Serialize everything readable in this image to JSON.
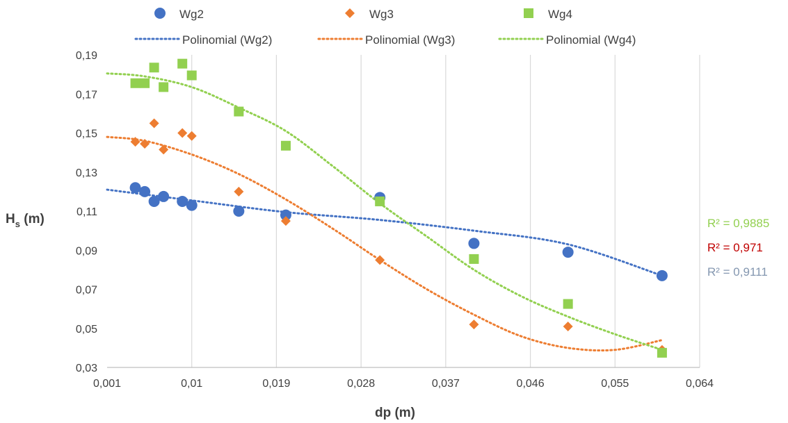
{
  "chart_data": {
    "type": "scatter",
    "title": "",
    "xlabel": "dp (m)",
    "ylabel": {
      "main": "H",
      "sub": "s",
      "unit": " (m)"
    },
    "xlim": [
      0.001,
      0.064
    ],
    "ylim": [
      0.03,
      0.19
    ],
    "xticks": [
      "0,001",
      "0,01",
      "0,019",
      "0,028",
      "0,037",
      "0,046",
      "0,055",
      "0,064"
    ],
    "xtick_values": [
      0.001,
      0.01,
      0.019,
      0.028,
      0.037,
      0.046,
      0.055,
      0.064
    ],
    "yticks": [
      "0,03",
      "0,05",
      "0,07",
      "0,09",
      "0,11",
      "0,13",
      "0,15",
      "0,17",
      "0,19"
    ],
    "ytick_values": [
      0.03,
      0.05,
      0.07,
      0.09,
      0.11,
      0.13,
      0.15,
      0.17,
      0.19
    ],
    "grid": "vertical",
    "legend_position": "top",
    "series": [
      {
        "name": "Wg2",
        "marker": "circle",
        "color": "#4472C4",
        "x": [
          0.004,
          0.005,
          0.006,
          0.007,
          0.009,
          0.01,
          0.015,
          0.02,
          0.03,
          0.04,
          0.05,
          0.06
        ],
        "y": [
          0.122,
          0.12,
          0.115,
          0.1175,
          0.115,
          0.113,
          0.11,
          0.108,
          0.117,
          0.0935,
          0.089,
          0.077
        ]
      },
      {
        "name": "Wg3",
        "marker": "diamond",
        "color": "#ED7D31",
        "x": [
          0.004,
          0.005,
          0.006,
          0.007,
          0.009,
          0.01,
          0.015,
          0.02,
          0.03,
          0.04,
          0.05,
          0.06
        ],
        "y": [
          0.1455,
          0.1445,
          0.155,
          0.1415,
          0.15,
          0.1485,
          0.12,
          0.105,
          0.085,
          0.052,
          0.051,
          0.039
        ]
      },
      {
        "name": "Wg4",
        "marker": "square",
        "color": "#92D050",
        "x": [
          0.004,
          0.005,
          0.006,
          0.007,
          0.009,
          0.01,
          0.015,
          0.02,
          0.03,
          0.04,
          0.05,
          0.06
        ],
        "y": [
          0.1755,
          0.1755,
          0.1835,
          0.1735,
          0.1855,
          0.1795,
          0.161,
          0.1435,
          0.115,
          0.0855,
          0.0625,
          0.0375
        ]
      }
    ],
    "trendlines": [
      {
        "name": "Polinomial (Wg2)",
        "color": "#4472C4",
        "x": [
          0.001,
          0.01,
          0.02,
          0.03,
          0.04,
          0.05,
          0.06
        ],
        "y": [
          0.121,
          0.1155,
          0.1095,
          0.1055,
          0.1,
          0.093,
          0.077
        ]
      },
      {
        "name": "Polinomial (Wg3)",
        "color": "#ED7D31",
        "x": [
          0.001,
          0.005,
          0.01,
          0.015,
          0.02,
          0.025,
          0.03,
          0.035,
          0.04,
          0.045,
          0.05,
          0.055,
          0.06
        ],
        "y": [
          0.148,
          0.146,
          0.139,
          0.129,
          0.116,
          0.101,
          0.085,
          0.07,
          0.057,
          0.046,
          0.04,
          0.039,
          0.044
        ]
      },
      {
        "name": "Polinomial (Wg4)",
        "color": "#92D050",
        "x": [
          0.001,
          0.005,
          0.01,
          0.015,
          0.02,
          0.025,
          0.03,
          0.035,
          0.04,
          0.045,
          0.05,
          0.055,
          0.06
        ],
        "y": [
          0.1805,
          0.179,
          0.1735,
          0.163,
          0.151,
          0.133,
          0.114,
          0.097,
          0.08,
          0.0665,
          0.056,
          0.047,
          0.039
        ]
      }
    ],
    "r2_labels": [
      {
        "text": "R² = 0,9885",
        "color": "#92D050"
      },
      {
        "text": "R² = 0,971",
        "color": "#C00000"
      },
      {
        "text": "R² = 0,9111",
        "color": "#8497B0"
      }
    ]
  }
}
